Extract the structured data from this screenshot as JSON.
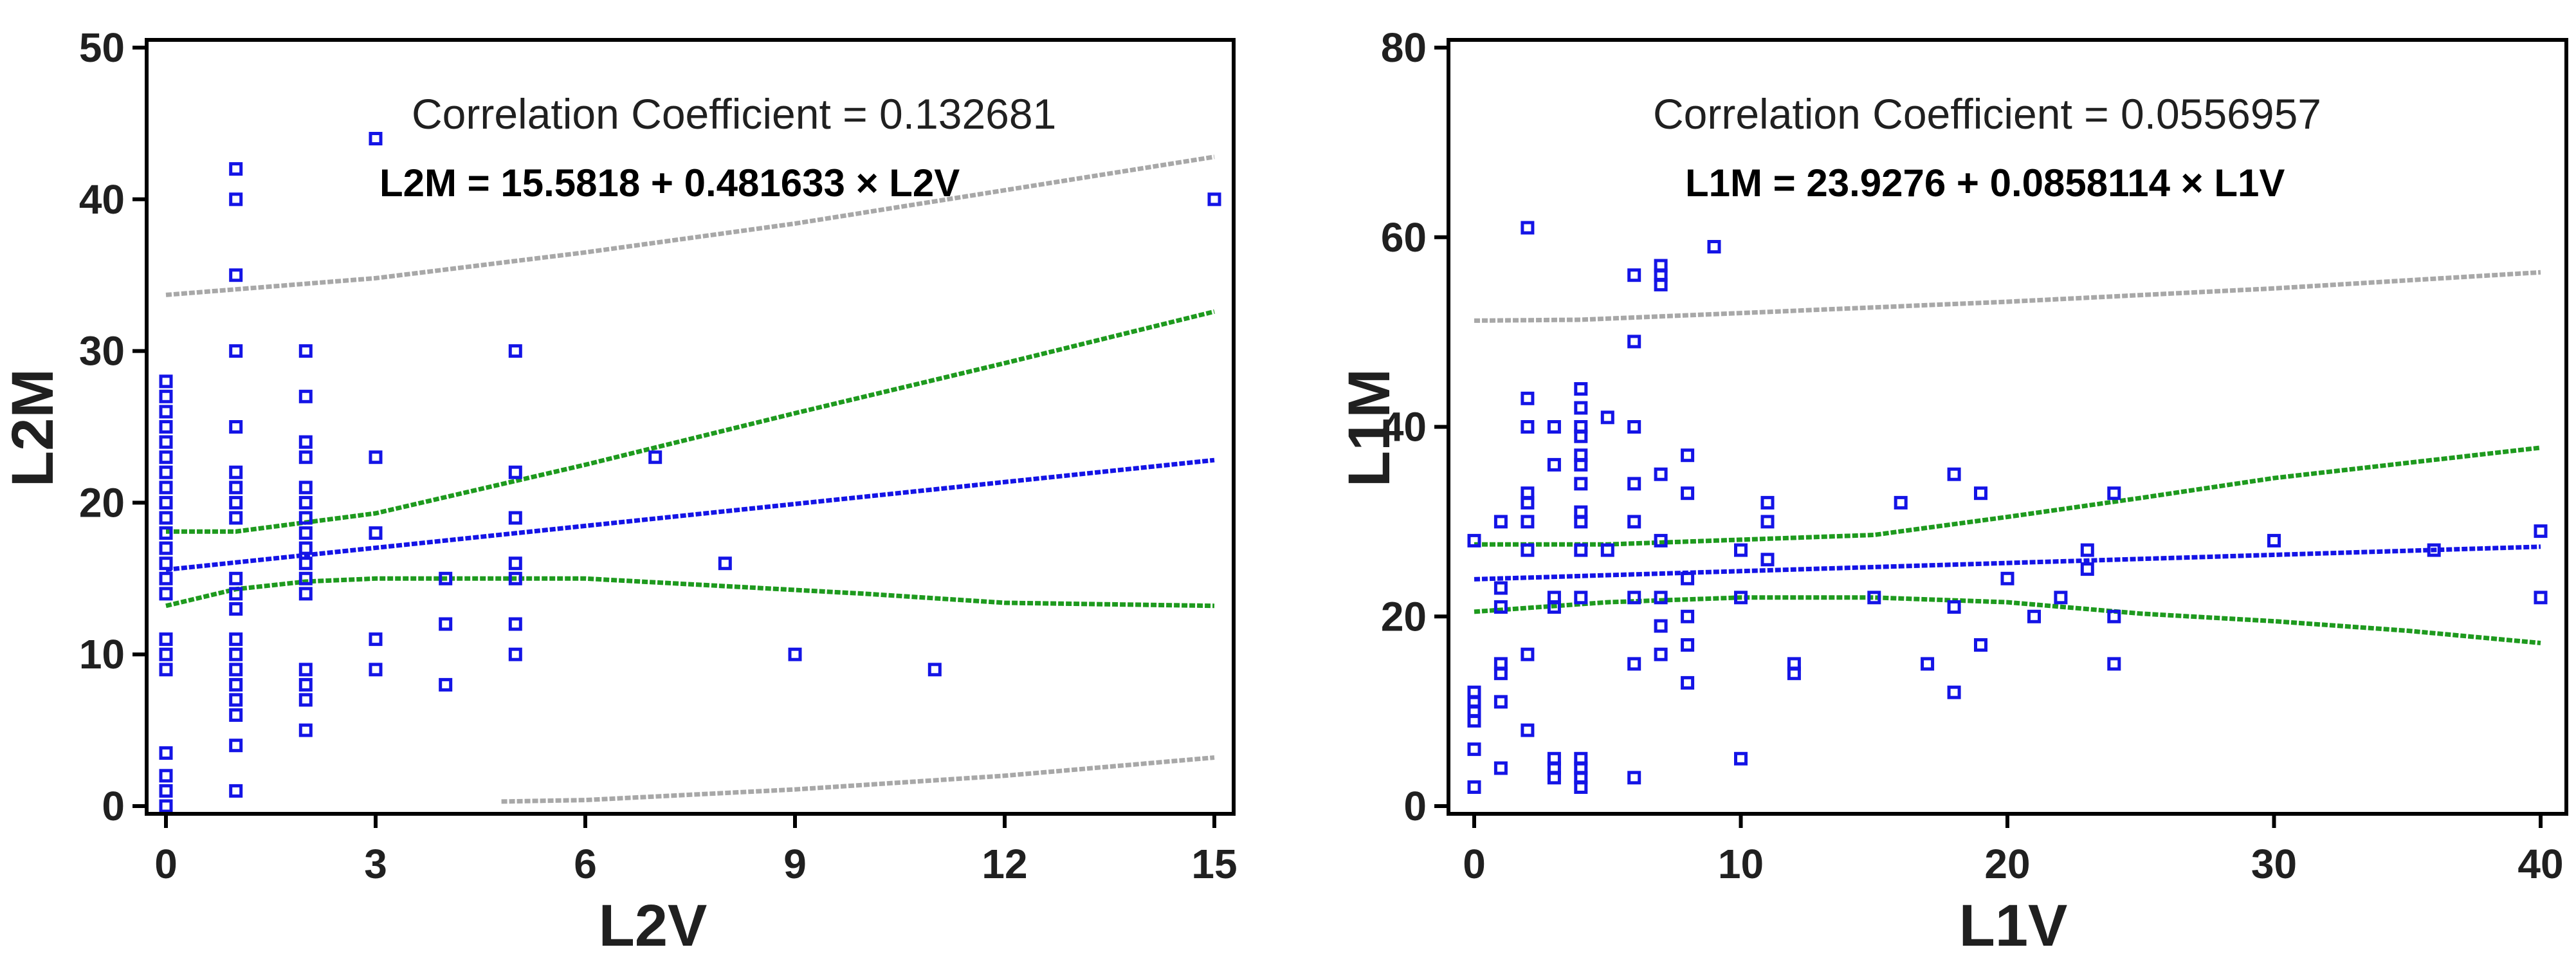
{
  "colors": {
    "points": "#1414e6",
    "fit": "#1414e6",
    "confidence": "#1e9a1e",
    "prediction": "#a8a8a8",
    "axes": "#000000",
    "text": "#202020"
  },
  "chart_data": [
    {
      "type": "scatter",
      "title": "",
      "xlabel": "L2V",
      "ylabel": "L2M",
      "xlim": [
        0,
        15
      ],
      "ylim": [
        0,
        50
      ],
      "xticks": [
        0,
        3,
        6,
        9,
        12,
        15
      ],
      "yticks": [
        0,
        10,
        20,
        30,
        40,
        50
      ],
      "correlation_text": "Correlation Coefficient = 0.132681",
      "equation_text": "L2M = 15.5818 + 0.481633 × L2V",
      "regression": {
        "intercept": 15.5818,
        "slope": 0.481633
      },
      "confidence_upper": [
        [
          0,
          18.1
        ],
        [
          1,
          18.1
        ],
        [
          3,
          19.3
        ],
        [
          6,
          22.5
        ],
        [
          9,
          25.9
        ],
        [
          12,
          29.2
        ],
        [
          15,
          32.6
        ]
      ],
      "confidence_lower": [
        [
          0,
          13.2
        ],
        [
          1,
          14.3
        ],
        [
          2,
          14.8
        ],
        [
          3,
          15.0
        ],
        [
          6,
          15.0
        ],
        [
          8,
          14.5
        ],
        [
          10,
          14.0
        ],
        [
          12,
          13.4
        ],
        [
          15,
          13.2
        ]
      ],
      "prediction_upper": [
        [
          0,
          33.7
        ],
        [
          3,
          34.8
        ],
        [
          6,
          36.5
        ],
        [
          9,
          38.4
        ],
        [
          12,
          40.6
        ],
        [
          15,
          42.8
        ]
      ],
      "prediction_lower": [
        [
          4.8,
          0.3
        ],
        [
          6,
          0.4
        ],
        [
          9,
          1.1
        ],
        [
          12,
          2.0
        ],
        [
          15,
          3.2
        ]
      ],
      "points": [
        [
          0,
          0
        ],
        [
          0,
          1
        ],
        [
          0,
          2
        ],
        [
          0,
          3.5
        ],
        [
          0,
          9
        ],
        [
          0,
          10
        ],
        [
          0,
          11
        ],
        [
          0,
          14
        ],
        [
          0,
          15
        ],
        [
          0,
          16
        ],
        [
          0,
          17
        ],
        [
          0,
          18
        ],
        [
          0,
          19
        ],
        [
          0,
          20
        ],
        [
          0,
          21
        ],
        [
          0,
          22
        ],
        [
          0,
          23
        ],
        [
          0,
          24
        ],
        [
          0,
          25
        ],
        [
          0,
          26
        ],
        [
          0,
          27
        ],
        [
          0,
          28
        ],
        [
          1,
          1
        ],
        [
          1,
          4
        ],
        [
          1,
          6
        ],
        [
          1,
          7
        ],
        [
          1,
          8
        ],
        [
          1,
          9
        ],
        [
          1,
          10
        ],
        [
          1,
          11
        ],
        [
          1,
          13
        ],
        [
          1,
          14
        ],
        [
          1,
          15
        ],
        [
          1,
          19
        ],
        [
          1,
          20
        ],
        [
          1,
          21
        ],
        [
          1,
          22
        ],
        [
          1,
          25
        ],
        [
          1,
          30
        ],
        [
          1,
          35
        ],
        [
          1,
          40
        ],
        [
          1,
          42
        ],
        [
          2,
          5
        ],
        [
          2,
          7
        ],
        [
          2,
          8
        ],
        [
          2,
          9
        ],
        [
          2,
          14
        ],
        [
          2,
          15
        ],
        [
          2,
          16
        ],
        [
          2,
          17
        ],
        [
          2,
          18
        ],
        [
          2,
          19
        ],
        [
          2,
          20
        ],
        [
          2,
          21
        ],
        [
          2,
          23
        ],
        [
          2,
          24
        ],
        [
          2,
          27
        ],
        [
          2,
          30
        ],
        [
          3,
          9
        ],
        [
          3,
          11
        ],
        [
          3,
          18
        ],
        [
          3,
          23
        ],
        [
          3,
          44
        ],
        [
          4,
          8
        ],
        [
          4,
          12
        ],
        [
          4,
          15
        ],
        [
          5,
          10
        ],
        [
          5,
          12
        ],
        [
          5,
          15
        ],
        [
          5,
          16
        ],
        [
          5,
          19
        ],
        [
          5,
          22
        ],
        [
          5,
          30
        ],
        [
          7,
          23
        ],
        [
          8,
          16
        ],
        [
          9,
          10
        ],
        [
          11,
          9
        ],
        [
          15,
          40
        ]
      ]
    },
    {
      "type": "scatter",
      "title": "",
      "xlabel": "L1V",
      "ylabel": "L1M",
      "xlim": [
        0,
        40
      ],
      "ylim": [
        0,
        80
      ],
      "xticks": [
        0,
        10,
        20,
        30,
        40
      ],
      "yticks": [
        0,
        20,
        40,
        60,
        80
      ],
      "correlation_text": "Correlation Coefficient = 0.0556957",
      "equation_text": "L1M = 23.9276 + 0.0858114 × L1V",
      "regression": {
        "intercept": 23.9276,
        "slope": 0.0858114
      },
      "confidence_upper": [
        [
          0,
          27.6
        ],
        [
          5,
          27.6
        ],
        [
          10,
          28.1
        ],
        [
          15,
          28.6
        ],
        [
          20,
          30.5
        ],
        [
          25,
          32.5
        ],
        [
          30,
          34.6
        ],
        [
          35,
          36.2
        ],
        [
          40,
          37.8
        ]
      ],
      "confidence_lower": [
        [
          0,
          20.5
        ],
        [
          5,
          21.5
        ],
        [
          10,
          22.0
        ],
        [
          15,
          22.0
        ],
        [
          20,
          21.5
        ],
        [
          25,
          20.3
        ],
        [
          30,
          19.5
        ],
        [
          35,
          18.5
        ],
        [
          40,
          17.2
        ]
      ],
      "prediction_upper": [
        [
          0,
          51.2
        ],
        [
          4,
          51.3
        ],
        [
          10,
          52.0
        ],
        [
          20,
          53.2
        ],
        [
          30,
          54.6
        ],
        [
          40,
          56.3
        ]
      ],
      "points": [
        [
          0,
          2
        ],
        [
          0,
          6
        ],
        [
          0,
          9
        ],
        [
          0,
          10
        ],
        [
          0,
          11
        ],
        [
          0,
          12
        ],
        [
          0,
          28
        ],
        [
          1,
          4
        ],
        [
          1,
          11
        ],
        [
          1,
          14
        ],
        [
          1,
          15
        ],
        [
          1,
          21
        ],
        [
          1,
          23
        ],
        [
          1,
          30
        ],
        [
          2,
          8
        ],
        [
          2,
          16
        ],
        [
          2,
          27
        ],
        [
          2,
          30
        ],
        [
          2,
          32
        ],
        [
          2,
          33
        ],
        [
          2,
          40
        ],
        [
          2,
          43
        ],
        [
          2,
          61
        ],
        [
          3,
          3
        ],
        [
          3,
          4
        ],
        [
          3,
          5
        ],
        [
          3,
          21
        ],
        [
          3,
          22
        ],
        [
          3,
          36
        ],
        [
          3,
          40
        ],
        [
          4,
          2
        ],
        [
          4,
          3
        ],
        [
          4,
          4
        ],
        [
          4,
          5
        ],
        [
          4,
          22
        ],
        [
          4,
          27
        ],
        [
          4,
          30
        ],
        [
          4,
          31
        ],
        [
          4,
          34
        ],
        [
          4,
          36
        ],
        [
          4,
          37
        ],
        [
          4,
          39
        ],
        [
          4,
          40
        ],
        [
          4,
          42
        ],
        [
          4,
          44
        ],
        [
          5,
          27
        ],
        [
          5,
          41
        ],
        [
          6,
          3
        ],
        [
          6,
          15
        ],
        [
          6,
          22
        ],
        [
          6,
          30
        ],
        [
          6,
          34
        ],
        [
          6,
          40
        ],
        [
          6,
          49
        ],
        [
          6,
          56
        ],
        [
          7,
          16
        ],
        [
          7,
          19
        ],
        [
          7,
          22
        ],
        [
          7,
          28
        ],
        [
          7,
          35
        ],
        [
          7,
          55
        ],
        [
          7,
          56
        ],
        [
          7,
          57
        ],
        [
          8,
          13
        ],
        [
          8,
          17
        ],
        [
          8,
          20
        ],
        [
          8,
          24
        ],
        [
          8,
          33
        ],
        [
          8,
          37
        ],
        [
          9,
          59
        ],
        [
          10,
          5
        ],
        [
          10,
          22
        ],
        [
          10,
          27
        ],
        [
          11,
          26
        ],
        [
          11,
          30
        ],
        [
          11,
          32
        ],
        [
          12,
          14
        ],
        [
          12,
          15
        ],
        [
          15,
          22
        ],
        [
          16,
          32
        ],
        [
          17,
          15
        ],
        [
          18,
          12
        ],
        [
          18,
          21
        ],
        [
          18,
          35
        ],
        [
          19,
          17
        ],
        [
          19,
          33
        ],
        [
          20,
          24
        ],
        [
          21,
          20
        ],
        [
          22,
          22
        ],
        [
          23,
          25
        ],
        [
          23,
          27
        ],
        [
          24,
          15
        ],
        [
          24,
          20
        ],
        [
          24,
          33
        ],
        [
          30,
          28
        ],
        [
          36,
          27
        ],
        [
          40,
          22
        ],
        [
          40,
          29
        ]
      ]
    }
  ]
}
